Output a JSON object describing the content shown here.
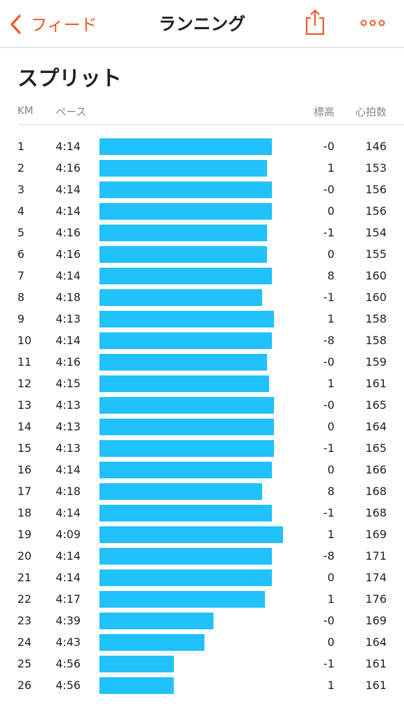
{
  "header": {
    "back": "フィード",
    "title": "ランニング"
  },
  "section_title": "スプリット",
  "columns": [
    "KM",
    "ペース",
    "標高",
    "心拍数"
  ],
  "rows": [
    [
      1,
      "4:14",
      "-0",
      146
    ],
    [
      2,
      "4:16",
      "1",
      153
    ],
    [
      3,
      "4:14",
      "-0",
      156
    ],
    [
      4,
      "4:14",
      "0",
      156
    ],
    [
      5,
      "4:16",
      "-1",
      154
    ],
    [
      6,
      "4:16",
      "0",
      155
    ],
    [
      7,
      "4:14",
      "8",
      160
    ],
    [
      8,
      "4:18",
      "-1",
      160
    ],
    [
      9,
      "4:13",
      "1",
      158
    ],
    [
      10,
      "4:14",
      "-8",
      158
    ],
    [
      11,
      "4:16",
      "-0",
      159
    ],
    [
      12,
      "4:15",
      "1",
      161
    ],
    [
      13,
      "4:13",
      "-0",
      165
    ],
    [
      14,
      "4:13",
      "0",
      164
    ],
    [
      15,
      "4:13",
      "-1",
      165
    ],
    [
      16,
      "4:14",
      "0",
      166
    ],
    [
      17,
      "4:18",
      "8",
      168
    ],
    [
      18,
      "4:14",
      "-1",
      168
    ],
    [
      19,
      "4:09",
      "1",
      169
    ],
    [
      20,
      "4:14",
      "-8",
      171
    ],
    [
      21,
      "4:14",
      "0",
      174
    ],
    [
      22,
      "4:17",
      "1",
      176
    ],
    [
      23,
      "4:39",
      "-0",
      169
    ],
    [
      24,
      "4:43",
      "0",
      164
    ],
    [
      25,
      "4:56",
      "-1",
      161
    ],
    [
      26,
      "4:56",
      "1",
      161
    ]
  ]
}
